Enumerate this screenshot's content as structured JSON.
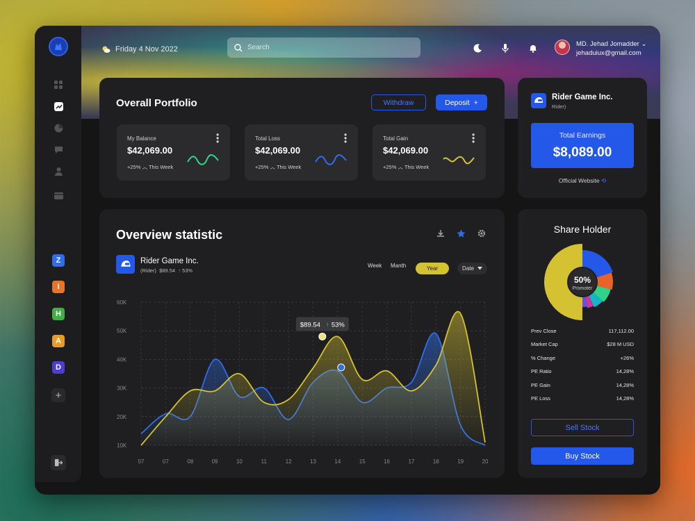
{
  "colors": {
    "accent": "#2458e8",
    "yellow": "#d4c232",
    "green": "#2fd48a",
    "card": "#1f1f21",
    "panel": "#151516"
  },
  "header": {
    "date": "Friday 4 Nov 2022",
    "search_placeholder": "Search",
    "user_name": "MD. Jehad Jomadder",
    "user_email": "jehaduiux@gmail.com"
  },
  "sidebar": {
    "nav_icons": [
      "grid-icon",
      "chart-icon",
      "pie-icon",
      "chat-icon",
      "user-icon",
      "wallet-icon"
    ],
    "apps": [
      {
        "letter": "Z",
        "color": "#2f6ee8"
      },
      {
        "letter": "I",
        "color": "#e8742a"
      },
      {
        "letter": "H",
        "color": "#3fae43"
      },
      {
        "letter": "A",
        "color": "#e89a2a"
      },
      {
        "letter": "D",
        "color": "#4a3fd0"
      }
    ],
    "add_label": "+"
  },
  "portfolio": {
    "title": "Overall Portfolio",
    "withdraw": "Withdraw",
    "deposit": "Deposit",
    "stats": [
      {
        "label": "My Balance",
        "value": "$42,069.00",
        "change": "+25%",
        "period": "This Week",
        "color": "#2fd48a"
      },
      {
        "label": "Total Loss",
        "value": "$42,069.00",
        "change": "+25%",
        "period": "This Week",
        "color": "#2f6ee8"
      },
      {
        "label": "Total Gain",
        "value": "$42,069.00",
        "change": "+25%",
        "period": "This Week",
        "color": "#d4c232"
      }
    ]
  },
  "rider": {
    "name": "Rider Game Inc.",
    "sub": "Rider)",
    "earnings_label": "Total Earnings",
    "earnings_value": "$8,089.00",
    "official": "Official Website"
  },
  "overview": {
    "title": "Overview statistic",
    "company": "Rider Game Inc.",
    "ticker": "(Rider)",
    "price": "$89.54",
    "change": "53%",
    "tabs": [
      "Week",
      "Manth"
    ],
    "active_tab": "Year",
    "date_dropdown": "Date"
  },
  "chart_data": {
    "type": "area",
    "categories": [
      "07",
      "07",
      "08",
      "09",
      "10",
      "11",
      "12",
      "13",
      "14",
      "15",
      "16",
      "17",
      "18",
      "19",
      "20"
    ],
    "ylim": [
      10,
      60
    ],
    "y_ticks": [
      "10K",
      "20K",
      "30K",
      "40K",
      "50K",
      "60K"
    ],
    "grid": true,
    "series": [
      {
        "color": "#2f6ee8",
        "values": [
          14,
          21,
          20,
          40,
          27,
          30,
          19,
          32,
          36,
          25,
          30,
          32,
          49,
          17,
          10
        ]
      },
      {
        "color": "#d4c232",
        "values": [
          10,
          20,
          29,
          29,
          35,
          25,
          26,
          37,
          48,
          33,
          36,
          29,
          38,
          56,
          11
        ]
      }
    ],
    "tooltip": {
      "category": "13",
      "price": "$89.54",
      "change": "53%"
    }
  },
  "share": {
    "title": "Share Holder",
    "center_value": "50%",
    "center_label": "Promoter",
    "segments": [
      {
        "color": "#d4c232",
        "value": 50
      },
      {
        "color": "#2458e8",
        "value": 20
      },
      {
        "color": "#e8632a",
        "value": 9
      },
      {
        "color": "#2fd48a",
        "value": 8
      },
      {
        "color": "#16b5c4",
        "value": 6
      },
      {
        "color": "#c23aa0",
        "value": 4
      },
      {
        "color": "#6a4fe0",
        "value": 3
      }
    ],
    "rows": [
      {
        "k": "Prev Close",
        "v": "117,112.00"
      },
      {
        "k": "Market Cap",
        "v": "$28 M USD"
      },
      {
        "k": "% Change",
        "v": "+26%"
      },
      {
        "k": "PE Ratio",
        "v": "14,28%"
      },
      {
        "k": "PE Gain",
        "v": "14,28%"
      },
      {
        "k": "PE Loss",
        "v": "14,28%"
      }
    ],
    "sell": "Sell Stock",
    "buy": "Buy Stock"
  }
}
